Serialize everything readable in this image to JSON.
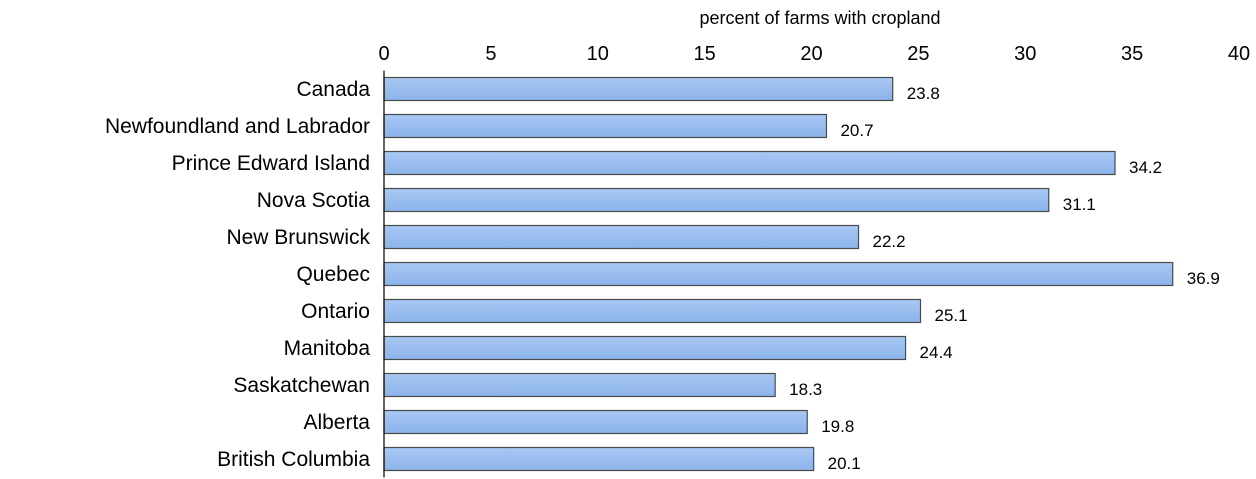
{
  "chart_data": {
    "type": "bar",
    "orientation": "horizontal",
    "title": "",
    "xlabel": "percent of farms with cropland",
    "ylabel": "",
    "xlim": [
      0,
      40
    ],
    "x_ticks": [
      "0",
      "5",
      "10",
      "15",
      "20",
      "25",
      "30",
      "35",
      "40"
    ],
    "categories": [
      "Canada",
      "Newfoundland and Labrador",
      "Prince Edward Island",
      "Nova Scotia",
      "New Brunswick",
      "Quebec",
      "Ontario",
      "Manitoba",
      "Saskatchewan",
      "Alberta",
      "British Columbia"
    ],
    "values": [
      23.8,
      20.7,
      34.2,
      31.1,
      22.2,
      36.9,
      25.1,
      24.4,
      18.3,
      19.8,
      20.1
    ],
    "value_labels": [
      "23.8",
      "20.7",
      "34.2",
      "31.1",
      "22.2",
      "36.9",
      "25.1",
      "24.4",
      "18.3",
      "19.8",
      "20.1"
    ],
    "axis_position": "top",
    "grid": false,
    "legend": "none",
    "colors": {
      "bar_fill_top": "#a9c8f4",
      "bar_fill_bottom": "#8bb3ea",
      "bar_stroke": "#4a4a4a"
    }
  }
}
